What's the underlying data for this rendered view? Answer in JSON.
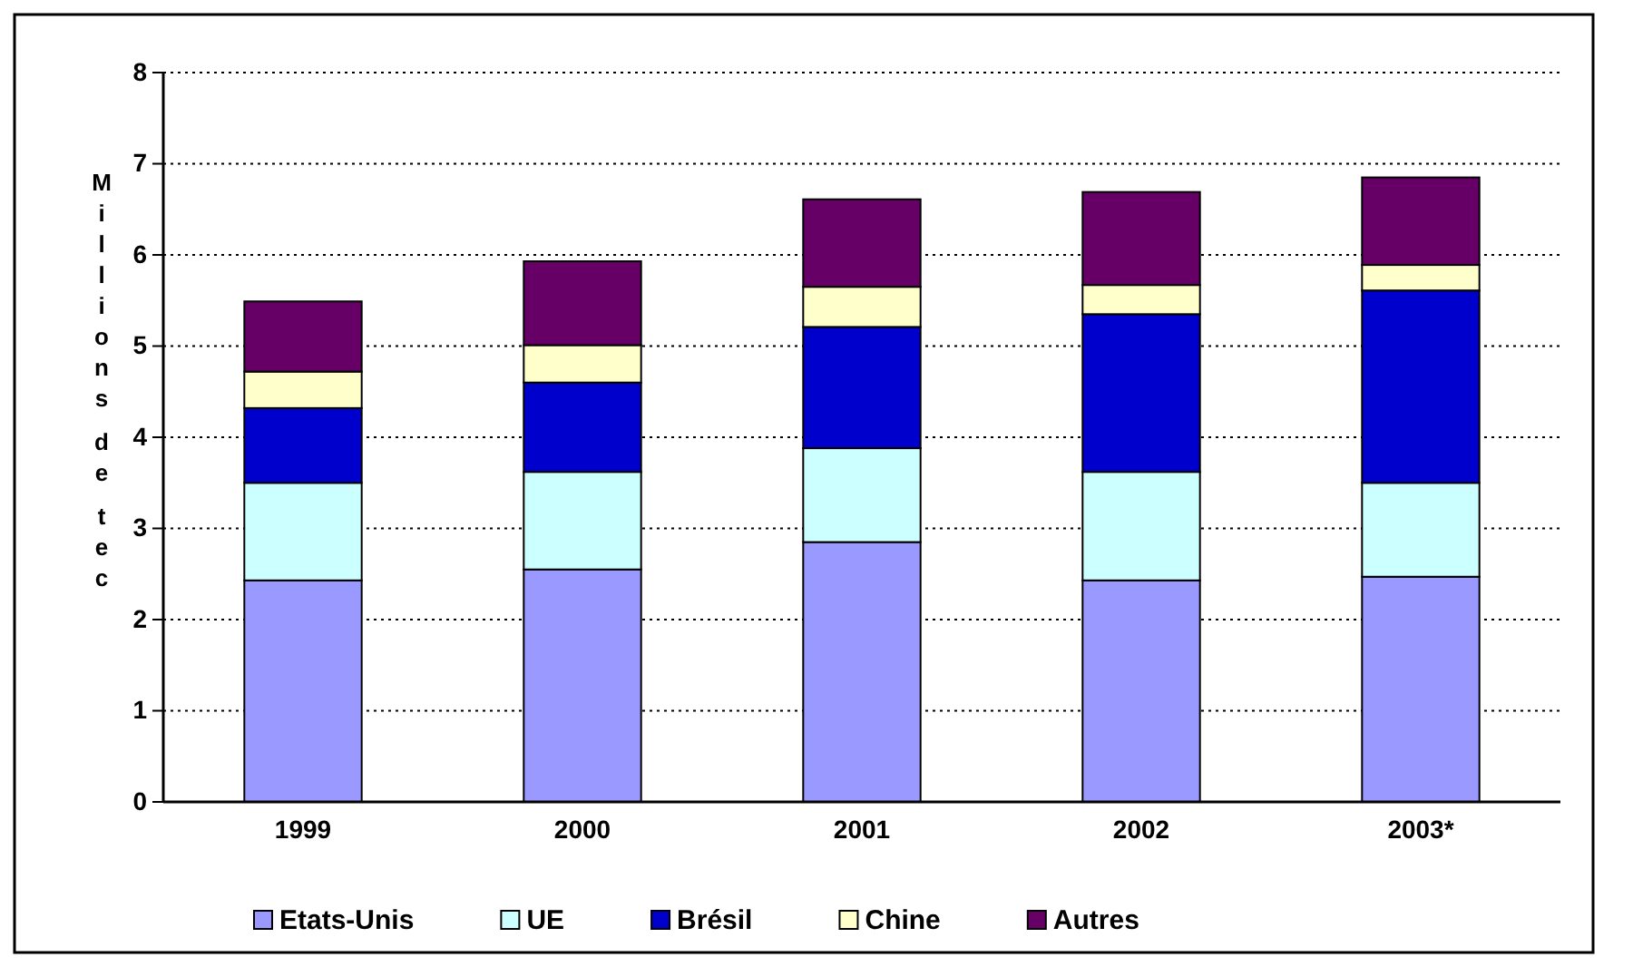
{
  "chart_data": {
    "type": "bar",
    "stacked": true,
    "ylabel": "Millions de tec",
    "categories": [
      "1999",
      "2000",
      "2001",
      "2002",
      "2003*"
    ],
    "series": [
      {
        "name": "Etats-Unis",
        "color": "#9999ff",
        "values": [
          2.43,
          2.55,
          2.85,
          2.43,
          2.47
        ]
      },
      {
        "name": "UE",
        "color": "#ccffff",
        "values": [
          1.07,
          1.07,
          1.03,
          1.19,
          1.03
        ]
      },
      {
        "name": "Brésil",
        "color": "#0000cc",
        "values": [
          0.82,
          0.98,
          1.33,
          1.73,
          2.11
        ]
      },
      {
        "name": "Chine",
        "color": "#ffffcc",
        "values": [
          0.4,
          0.41,
          0.44,
          0.32,
          0.28
        ]
      },
      {
        "name": "Autres",
        "color": "#660066",
        "values": [
          0.77,
          0.92,
          0.96,
          1.02,
          0.96
        ]
      }
    ],
    "ylim": [
      0,
      8
    ],
    "yticks": [
      0,
      1,
      2,
      3,
      4,
      5,
      6,
      7,
      8
    ],
    "grid": "y",
    "legend": "bottom"
  }
}
